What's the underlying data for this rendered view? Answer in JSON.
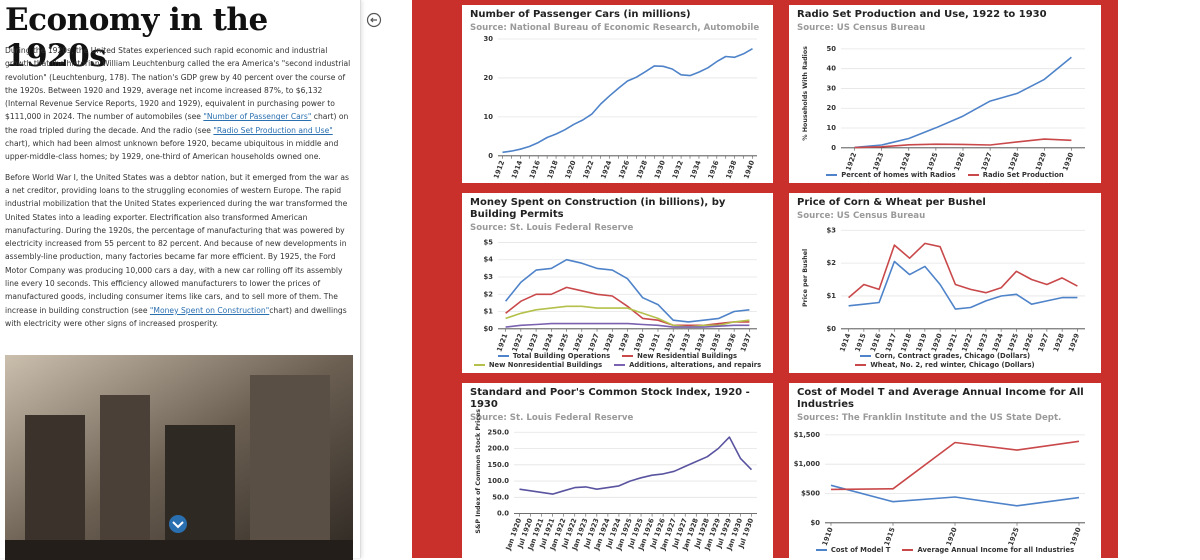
{
  "article": {
    "title": "Economy in the 1920s",
    "paragraphs": [
      [
        {
          "text": "During the 1920s, the United States experienced such rapid economic and industrial growth that the historian William Leuchtenburg called the era America's \"second industrial revolution\" (Leuchtenburg, 178). The nation's GDP grew by 40 percent over the course of the 1920s. Between 1920 and 1929, average net income increased 87%, to $6,132 (Internal Revenue Service Reports, 1920 and 1929), equivalent in purchasing power to $111,000 in 2024. The number of automobiles (see "
        },
        {
          "link": "\"Number of Passenger Cars\""
        },
        {
          "text": " chart) on the road tripled during the decade. And the radio (see "
        },
        {
          "link": "\"Radio Set Production and Use\""
        },
        {
          "text": " chart), which had been almost unknown before 1920, became ubiquitous in middle and upper-middle-class homes; by 1929, one-third of American households owned one."
        }
      ],
      [
        {
          "text": "Before World War I, the United States was a debtor nation, but it emerged from the war as a net creditor, providing loans to the struggling economies of western Europe. The rapid industrial mobilization that the United States experienced during the war transformed the United States into a leading exporter. Electrification also transformed American manufacturing. During the 1920s, the percentage of manufacturing that was powered by electricity increased from 55 percent to 82 percent. And because of new developments in assembly-line production, many factories became far more efficient. By 1925, the Ford Motor Company was producing 10,000 cars a day, with a new car rolling off its assembly line every 10 seconds. This efficiency allowed manufacturers to lower the prices of manufactured goods, including consumer items like cars, and to sell more of them. The increase in building construction (see "
        },
        {
          "link": "\"Money Spent on Construction\""
        },
        {
          "text": "chart) and dwellings with electricity were other signs of increased prosperity."
        }
      ]
    ]
  },
  "chart_data": [
    {
      "type": "line",
      "title": "Number of Passenger Cars (in millions)",
      "source": "Source: National Bureau of Economic Research, Automobile",
      "categories": [
        "1912",
        null,
        "1914",
        null,
        "1916",
        null,
        "1918",
        null,
        "1920",
        null,
        "1922",
        null,
        "1924",
        null,
        "1926",
        null,
        "1928",
        null,
        "1930",
        null,
        "1932",
        null,
        "1934",
        null,
        "1936",
        null,
        "1938",
        null,
        "1940"
      ],
      "color": "#4f83c9",
      "values": [
        0.9,
        1.2,
        1.7,
        2.4,
        3.4,
        4.7,
        5.6,
        6.7,
        8.1,
        9.2,
        10.7,
        13.3,
        15.4,
        17.4,
        19.2,
        20.2,
        21.6,
        23.1,
        23.0,
        22.3,
        20.8,
        20.6,
        21.5,
        22.6,
        24.2,
        25.5,
        25.3,
        26.2,
        27.5
      ],
      "ylim": [
        0,
        30
      ],
      "yticks": [
        0,
        10,
        20,
        30
      ],
      "grid": true
    },
    {
      "type": "line",
      "title": "Radio Set Production and Use, 1922 to 1930",
      "source": "Source: US Census Bureau",
      "ylabel": "% Households With Radios",
      "categories": [
        "1922",
        "1923",
        "1924",
        "1925",
        "1926",
        "1927",
        "1928",
        "1929",
        "1930"
      ],
      "series": [
        {
          "name": "Percent of homes with Radios",
          "color": "#4f83c9",
          "values": [
            0.2,
            1.4,
            4.7,
            10.1,
            16,
            23.6,
            27.5,
            34.6,
            45.8
          ]
        },
        {
          "name": "Radio Set Production",
          "color": "#c9484a",
          "values": [
            0.1,
            0.5,
            1.5,
            1.8,
            1.7,
            1.4,
            3.0,
            4.4,
            3.8
          ]
        }
      ],
      "ylim": [
        0,
        55
      ],
      "yticks": [
        0,
        10,
        20,
        30,
        40,
        50
      ],
      "grid": true
    },
    {
      "type": "line",
      "title": "Money Spent on Construction (in billions), by Building Permits",
      "source": "Source: St. Louis Federal Reserve",
      "categories": [
        "1921",
        "1922",
        "1923",
        "1924",
        "1925",
        "1926",
        "1927",
        "1928",
        "1929",
        "1930",
        "1931",
        "1932",
        "1933",
        "1934",
        "1935",
        "1936",
        "1937"
      ],
      "series": [
        {
          "name": "Total Building Operations",
          "color": "#4f83c9",
          "values": [
            1.6,
            2.7,
            3.4,
            3.5,
            4.0,
            3.8,
            3.5,
            3.4,
            2.9,
            1.8,
            1.4,
            0.5,
            0.4,
            0.5,
            0.6,
            1.0,
            1.1
          ]
        },
        {
          "name": "New Residential Buildings",
          "color": "#c9484a",
          "values": [
            0.9,
            1.6,
            2.0,
            2.0,
            2.4,
            2.2,
            2.0,
            1.9,
            1.3,
            0.6,
            0.5,
            0.2,
            0.2,
            0.2,
            0.3,
            0.4,
            0.4
          ]
        },
        {
          "name": "New Nonresidential Buildings",
          "color": "#b4c04a",
          "values": [
            0.6,
            0.9,
            1.1,
            1.2,
            1.3,
            1.3,
            1.2,
            1.2,
            1.2,
            0.9,
            0.6,
            0.2,
            0.1,
            0.2,
            0.2,
            0.4,
            0.5
          ]
        },
        {
          "name": "Additions, alterations, and repairs",
          "color": "#7b62b0",
          "values": [
            0.1,
            0.2,
            0.25,
            0.3,
            0.3,
            0.3,
            0.3,
            0.3,
            0.3,
            0.25,
            0.2,
            0.1,
            0.1,
            0.1,
            0.15,
            0.2,
            0.2
          ]
        }
      ],
      "ylim": [
        0,
        5.2
      ],
      "yticks": [
        {
          "value": 0,
          "label": "$0"
        },
        {
          "value": 1,
          "label": "$1"
        },
        {
          "value": 2,
          "label": "$2"
        },
        {
          "value": 3,
          "label": "$3"
        },
        {
          "value": 4,
          "label": "$4"
        },
        {
          "value": 5,
          "label": "$5"
        }
      ],
      "grid": true
    },
    {
      "type": "line",
      "title": "Price of Corn & Wheat per Bushel",
      "source": "Source: US Census Bureau",
      "ylabel": "Price per Bushel",
      "categories": [
        "1914",
        "1915",
        "1916",
        "1917",
        "1918",
        "1919",
        "1920",
        "1921",
        "1922",
        "1923",
        "1924",
        "1925",
        "1926",
        "1927",
        "1928",
        "1929"
      ],
      "series": [
        {
          "name": "Corn, Contract grades, Chicago (Dollars)",
          "color": "#4f83c9",
          "values": [
            0.7,
            0.75,
            0.8,
            2.05,
            1.65,
            1.9,
            1.35,
            0.6,
            0.65,
            0.85,
            1.0,
            1.05,
            0.75,
            0.85,
            0.95,
            0.95
          ]
        },
        {
          "name": "Wheat, No. 2, red winter, Chicago (Dollars)",
          "color": "#c9484a",
          "values": [
            0.95,
            1.35,
            1.2,
            2.55,
            2.15,
            2.6,
            2.5,
            1.35,
            1.2,
            1.1,
            1.25,
            1.75,
            1.5,
            1.35,
            1.55,
            1.3
          ]
        }
      ],
      "ylim": [
        0,
        3.1
      ],
      "yticks": [
        {
          "value": 0,
          "label": "$0"
        },
        {
          "value": 1,
          "label": "$1"
        },
        {
          "value": 2,
          "label": "$2"
        },
        {
          "value": 3,
          "label": "$3"
        }
      ],
      "grid": true
    },
    {
      "type": "line",
      "title": "Standard and Poor's Common Stock Index, 1920 - 1930",
      "source": "Source: St. Louis Federal Reserve",
      "ylabel": "S&P Index of Common Stock Prices",
      "categories": [
        "Jan 1920",
        "Jul 1920",
        "Jan 1921",
        "Jul 1921",
        "Jan 1922",
        "Jul 1922",
        "Jan 1923",
        "Jul 1923",
        "Jan 1924",
        "Jul 1924",
        "Jan 1925",
        "Jul 1925",
        "Jan 1926",
        "Jul 1926",
        "Jan 1927",
        "Jul 1927",
        "Jan 1928",
        "Jul 1928",
        "Jan 1929",
        "Jul 1929",
        "Jan 1930",
        "Jul 1930"
      ],
      "color": "#5a54a0",
      "values": [
        75,
        70,
        65,
        60,
        70,
        80,
        82,
        75,
        80,
        85,
        100,
        110,
        118,
        122,
        130,
        145,
        160,
        175,
        200,
        235,
        170,
        135
      ],
      "ylim": [
        0,
        260
      ],
      "yticks": [
        {
          "value": 0,
          "label": "0.0"
        },
        {
          "value": 50,
          "label": "50.0"
        },
        {
          "value": 100,
          "label": "100.0"
        },
        {
          "value": 150,
          "label": "150.0"
        },
        {
          "value": 200,
          "label": "200.0"
        },
        {
          "value": 250,
          "label": "250.0"
        }
      ],
      "grid": true
    },
    {
      "type": "line",
      "title": "Cost of Model T and Average Annual Income for All Industries",
      "source": "Sources: The Franklin Institute and the US State Dept.",
      "x": [
        1910,
        1915,
        1920,
        1925,
        1930
      ],
      "xlim": [
        1910,
        1930
      ],
      "xticks": [
        1910,
        1915,
        1920,
        1925,
        1930
      ],
      "series": [
        {
          "name": "Cost of Model T",
          "color": "#4f83c9",
          "values": [
            640,
            360,
            440,
            290,
            430
          ]
        },
        {
          "name": "Average Annual Income for all Industries",
          "color": "#c9484a",
          "values": [
            570,
            580,
            1370,
            1240,
            1390
          ]
        }
      ],
      "ylim": [
        0,
        1600
      ],
      "yticks": [
        {
          "value": 0,
          "label": "$0"
        },
        {
          "value": 500,
          "label": "$500"
        },
        {
          "value": 1000,
          "label": "$1,000"
        },
        {
          "value": 1500,
          "label": "$1,500"
        }
      ],
      "grid": true
    }
  ]
}
